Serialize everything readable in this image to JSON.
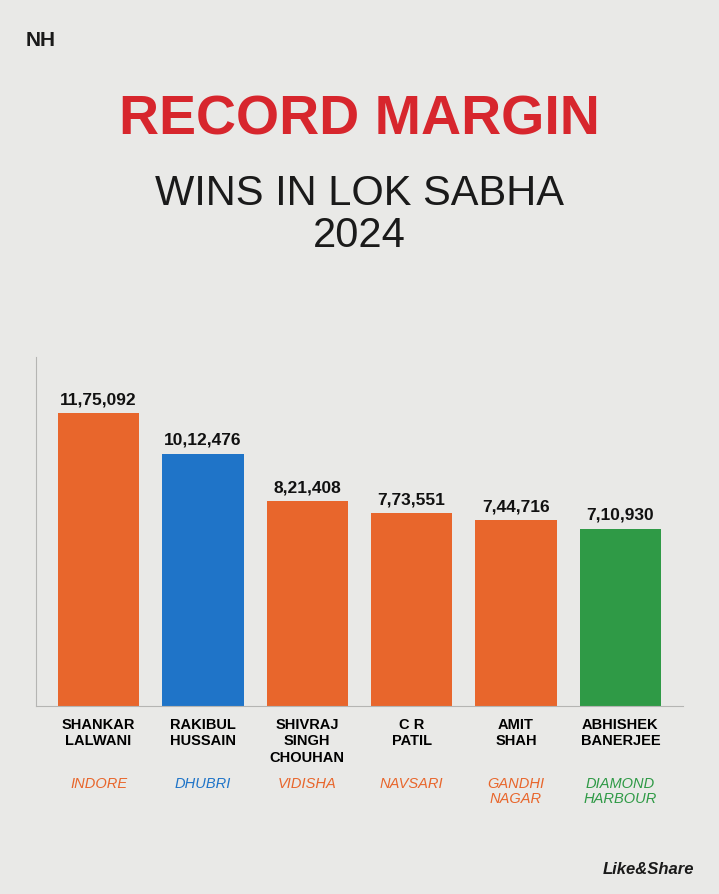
{
  "chart_data": {
    "type": "bar",
    "title": "RECORD MARGIN",
    "subtitle": "WINS IN LOK SABHA 2024",
    "categories": [
      "SHANKAR LALWANI",
      "RAKIBUL HUSSAIN",
      "SHIVRAJ SINGH CHOUHAN",
      "C R PATIL",
      "AMIT SHAH",
      "ABHISHEK BANERJEE"
    ],
    "constituencies": [
      "INDORE",
      "DHUBRI",
      "VIDISHA",
      "NAVSARI",
      "GANDHI NAGAR",
      "DIAMOND HARBOUR"
    ],
    "values": [
      1175092,
      1012476,
      821408,
      773551,
      744716,
      710930
    ],
    "value_labels": [
      "11,75,092",
      "10,12,476",
      "8,21,408",
      "7,73,551",
      "7,44,716",
      "7,10,930"
    ],
    "colors": [
      "#e8662c",
      "#1f74c8",
      "#e8662c",
      "#e8662c",
      "#e8662c",
      "#2f9a46"
    ],
    "ylim": [
      0,
      1400000
    ],
    "data_labels": true,
    "tick_labels": "x",
    "logo": "NH",
    "footer": "Like&Share"
  }
}
